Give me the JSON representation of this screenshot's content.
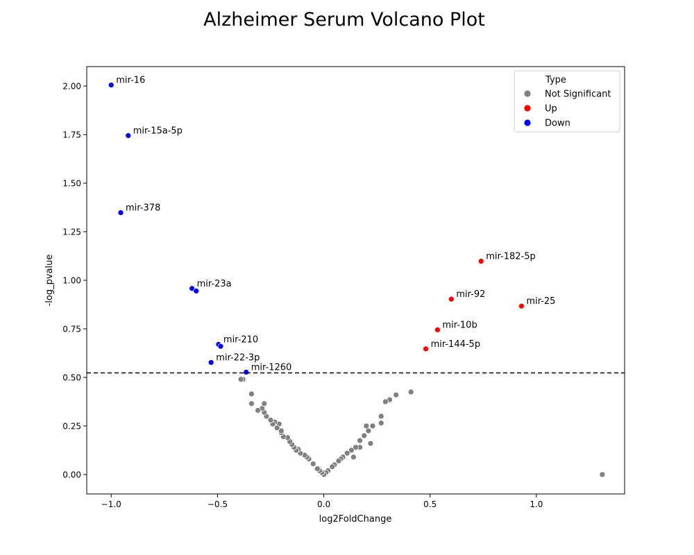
{
  "chart_data": {
    "type": "scatter",
    "title": "Alzheimer Serum Volcano Plot",
    "xlabel": "log2FoldChange",
    "ylabel": "-log_pvalue",
    "xlim": [
      -1.115,
      1.415
    ],
    "ylim": [
      -0.1,
      2.1
    ],
    "x_ticks": [
      -1.0,
      -0.5,
      0.0,
      0.5,
      1.0
    ],
    "x_tick_labels": [
      "−1.0",
      "−0.5",
      "0.0",
      "0.5",
      "1.0"
    ],
    "y_ticks": [
      0.0,
      0.25,
      0.5,
      0.75,
      1.0,
      1.25,
      1.5,
      1.75,
      2.0
    ],
    "y_tick_labels": [
      "0.00",
      "0.25",
      "0.50",
      "0.75",
      "1.00",
      "1.25",
      "1.50",
      "1.75",
      "2.00"
    ],
    "threshold": 0.523,
    "grid": false,
    "legend": {
      "title": "Type",
      "placement": "top-right",
      "entries": [
        {
          "label": "Not Significant",
          "color": "#808080"
        },
        {
          "label": "Up",
          "color": "#ff0000"
        },
        {
          "label": "Down",
          "color": "#0000ff"
        }
      ]
    },
    "series": [
      {
        "name": "Not Significant",
        "color": "#808080",
        "points": [
          [
            1.31,
            0.0
          ],
          [
            0.41,
            0.425
          ],
          [
            0.34,
            0.41
          ],
          [
            0.31,
            0.385
          ],
          [
            0.29,
            0.375
          ],
          [
            0.27,
            0.3
          ],
          [
            0.27,
            0.265
          ],
          [
            0.23,
            0.25
          ],
          [
            0.2,
            0.25
          ],
          [
            0.21,
            0.225
          ],
          [
            0.19,
            0.2
          ],
          [
            0.17,
            0.175
          ],
          [
            0.22,
            0.16
          ],
          [
            0.17,
            0.14
          ],
          [
            0.15,
            0.14
          ],
          [
            0.13,
            0.125
          ],
          [
            0.11,
            0.11
          ],
          [
            0.14,
            0.09
          ],
          [
            0.09,
            0.09
          ],
          [
            0.08,
            0.08
          ],
          [
            0.07,
            0.07
          ],
          [
            0.05,
            0.05
          ],
          [
            0.04,
            0.04
          ],
          [
            0.02,
            0.02
          ],
          [
            0.01,
            0.01
          ],
          [
            0.0,
            0.0
          ],
          [
            -0.01,
            0.01
          ],
          [
            -0.02,
            0.02
          ],
          [
            -0.03,
            0.03
          ],
          [
            -0.05,
            0.055
          ],
          [
            -0.07,
            0.08
          ],
          [
            -0.08,
            0.09
          ],
          [
            -0.09,
            0.1
          ],
          [
            -0.11,
            0.11
          ],
          [
            -0.12,
            0.13
          ],
          [
            -0.13,
            0.125
          ],
          [
            -0.14,
            0.14
          ],
          [
            -0.15,
            0.155
          ],
          [
            -0.16,
            0.17
          ],
          [
            -0.17,
            0.19
          ],
          [
            -0.19,
            0.195
          ],
          [
            -0.2,
            0.215
          ],
          [
            -0.2,
            0.225
          ],
          [
            -0.21,
            0.26
          ],
          [
            -0.22,
            0.24
          ],
          [
            -0.23,
            0.27
          ],
          [
            -0.24,
            0.26
          ],
          [
            -0.25,
            0.28
          ],
          [
            -0.27,
            0.3
          ],
          [
            -0.28,
            0.32
          ],
          [
            -0.29,
            0.34
          ],
          [
            -0.28,
            0.365
          ],
          [
            -0.31,
            0.33
          ],
          [
            -0.34,
            0.365
          ],
          [
            -0.34,
            0.415
          ],
          [
            -0.38,
            0.49
          ],
          [
            -0.39,
            0.49
          ]
        ]
      },
      {
        "name": "Up",
        "color": "#ff0000",
        "points": [
          [
            0.74,
            1.098
          ],
          [
            0.6,
            0.903
          ],
          [
            0.93,
            0.867
          ],
          [
            0.535,
            0.745
          ],
          [
            0.48,
            0.647
          ]
        ]
      },
      {
        "name": "Down",
        "color": "#0000ff",
        "points": [
          [
            -1.0,
            2.005
          ],
          [
            -0.92,
            1.745
          ],
          [
            -0.955,
            1.348
          ],
          [
            -0.62,
            0.958
          ],
          [
            -0.6,
            0.945
          ],
          [
            -0.495,
            0.67
          ],
          [
            -0.485,
            0.66
          ],
          [
            -0.53,
            0.577
          ],
          [
            -0.365,
            0.527
          ]
        ]
      }
    ],
    "annotations": [
      {
        "label": "mir-16",
        "x": -1.0,
        "y": 2.005
      },
      {
        "label": "mir-15a-5p",
        "x": -0.92,
        "y": 1.745
      },
      {
        "label": "mir-378",
        "x": -0.955,
        "y": 1.348
      },
      {
        "label": "mir-23a",
        "x": -0.62,
        "y": 0.958
      },
      {
        "label": "mir-210",
        "x": -0.495,
        "y": 0.67
      },
      {
        "label": "mir-22-3p",
        "x": -0.53,
        "y": 0.577
      },
      {
        "label": "mir-1260",
        "x": -0.365,
        "y": 0.527
      },
      {
        "label": "mir-182-5p",
        "x": 0.74,
        "y": 1.098
      },
      {
        "label": "mir-92",
        "x": 0.6,
        "y": 0.903
      },
      {
        "label": "mir-25",
        "x": 0.93,
        "y": 0.867
      },
      {
        "label": "mir-10b",
        "x": 0.535,
        "y": 0.745
      },
      {
        "label": "mir-144-5p",
        "x": 0.48,
        "y": 0.647
      }
    ]
  }
}
